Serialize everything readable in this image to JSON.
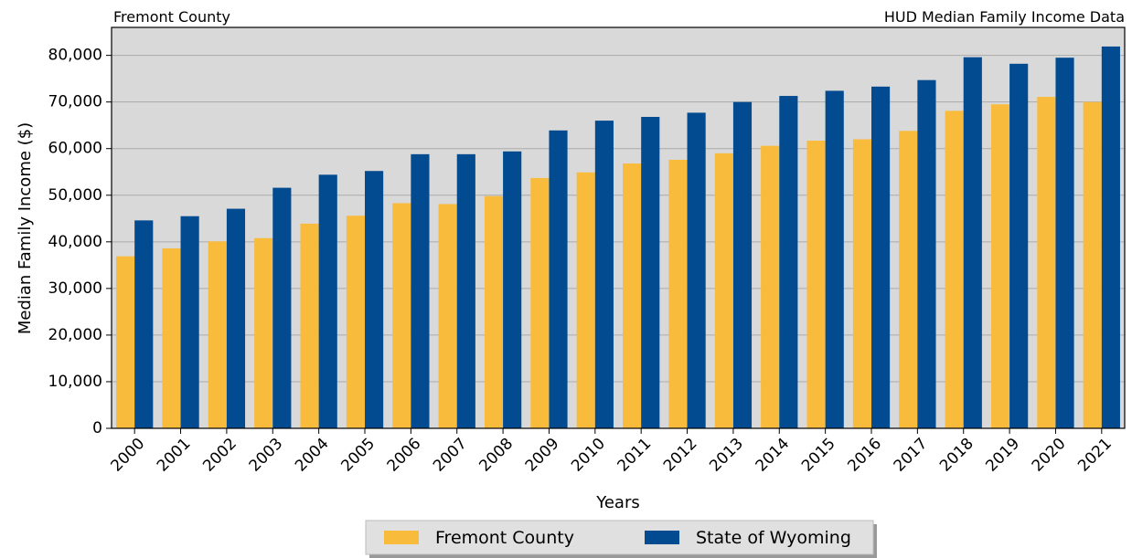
{
  "chart_data": {
    "type": "bar",
    "title_left": "Fremont County",
    "title_right": "HUD Median Family Income Data",
    "y_label": "Median Family Income ($)",
    "x_label": "Years",
    "categories": [
      "2000",
      "2001",
      "2002",
      "2003",
      "2004",
      "2005",
      "2006",
      "2007",
      "2008",
      "2009",
      "2010",
      "2011",
      "2012",
      "2013",
      "2014",
      "2015",
      "2016",
      "2017",
      "2018",
      "2019",
      "2020",
      "2021"
    ],
    "series": [
      {
        "name": "Fremont County",
        "color": "#f9bb3c",
        "values": [
          36900,
          38600,
          40100,
          40800,
          43900,
          45600,
          48300,
          48100,
          49800,
          53700,
          54900,
          56800,
          57600,
          59000,
          60600,
          61700,
          62000,
          63800,
          68100,
          69500,
          71100,
          70000
        ]
      },
      {
        "name": "State of Wyoming",
        "color": "#024b91",
        "values": [
          44600,
          45500,
          47100,
          51600,
          54400,
          55200,
          58800,
          58800,
          59400,
          63900,
          66000,
          66800,
          67700,
          70000,
          71300,
          72400,
          73300,
          74700,
          79600,
          78200,
          79500,
          81900
        ]
      }
    ],
    "ylim": [
      0,
      86000
    ],
    "yticks": [
      0,
      {
        "value": 10000,
        "label": "10,000"
      },
      {
        "value": 20000,
        "label": "20,000"
      },
      {
        "value": 30000,
        "label": "30,000"
      },
      {
        "value": 40000,
        "label": "40,000"
      },
      {
        "value": 50000,
        "label": "50,000"
      },
      {
        "value": 60000,
        "label": "60,000"
      },
      {
        "value": 70000,
        "label": "70,000"
      },
      {
        "value": 80000,
        "label": "80,000"
      }
    ],
    "grid": true,
    "legend": "bottom"
  }
}
